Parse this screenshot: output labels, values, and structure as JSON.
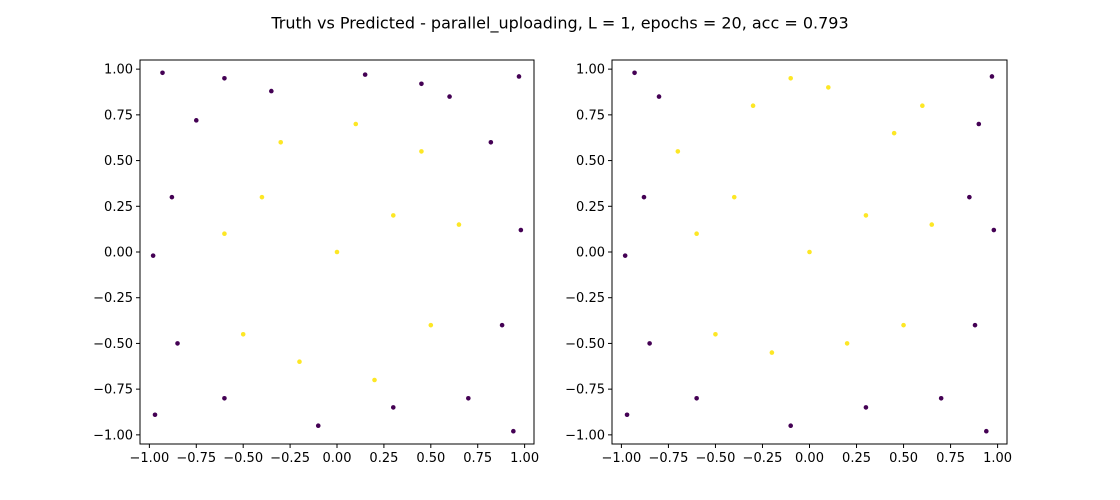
{
  "figure": {
    "suptitle": "Truth vs Predicted - parallel_uploading, L = 1, epochs = 20, acc = 0.793"
  },
  "chart_data": [
    {
      "type": "scatter",
      "panel": "left",
      "title": "",
      "xlabel": "",
      "ylabel": "",
      "xlim": [
        -1.05,
        1.05
      ],
      "ylim": [
        -1.05,
        1.05
      ],
      "xticks": [
        "−1.00",
        "−0.75",
        "−0.50",
        "−0.25",
        "0.00",
        "0.25",
        "0.50",
        "0.75",
        "1.00"
      ],
      "yticks": [
        "−1.00",
        "−0.75",
        "−0.50",
        "−0.25",
        "0.00",
        "0.25",
        "0.50",
        "0.75",
        "1.00"
      ],
      "grid": false,
      "legend": "none",
      "colors": {
        "outside": "#440154",
        "inside": "#fde725"
      },
      "series": [
        {
          "values": [
            [
              -0.93,
              0.98
            ],
            [
              -0.6,
              0.95
            ],
            [
              0.15,
              0.97
            ],
            [
              0.97,
              0.96
            ],
            [
              -0.98,
              -0.02
            ],
            [
              0.98,
              0.12
            ],
            [
              -0.97,
              -0.89
            ],
            [
              0.94,
              -0.98
            ],
            [
              -0.1,
              -0.95
            ],
            [
              0.7,
              -0.8
            ],
            [
              -0.75,
              0.72
            ],
            [
              0.6,
              0.85
            ],
            [
              -0.88,
              0.3
            ],
            [
              0.88,
              -0.4
            ],
            [
              -0.6,
              -0.8
            ],
            [
              0.3,
              -0.85
            ],
            [
              -0.35,
              0.88
            ],
            [
              0.82,
              0.6
            ],
            [
              -0.85,
              -0.5
            ],
            [
              0.45,
              0.92
            ]
          ]
        },
        {
          "values": [
            [
              0.0,
              0.0
            ],
            [
              0.3,
              0.2
            ],
            [
              -0.4,
              0.3
            ],
            [
              0.5,
              -0.4
            ],
            [
              -0.2,
              -0.6
            ],
            [
              0.1,
              0.7
            ],
            [
              -0.6,
              0.1
            ],
            [
              0.65,
              0.15
            ],
            [
              -0.5,
              -0.45
            ],
            [
              0.2,
              -0.7
            ],
            [
              0.45,
              0.55
            ],
            [
              -0.3,
              0.6
            ]
          ]
        }
      ]
    },
    {
      "type": "scatter",
      "panel": "right",
      "title": "",
      "xlabel": "",
      "ylabel": "",
      "xlim": [
        -1.05,
        1.05
      ],
      "ylim": [
        -1.05,
        1.05
      ],
      "xticks": [
        "−1.00",
        "−0.75",
        "−0.50",
        "−0.25",
        "0.00",
        "0.25",
        "0.50",
        "0.75",
        "1.00"
      ],
      "yticks": [
        "−1.00",
        "−0.75",
        "−0.50",
        "−0.25",
        "0.00",
        "0.25",
        "0.50",
        "0.75",
        "1.00"
      ],
      "grid": false,
      "legend": "none",
      "colors": {
        "outside": "#440154",
        "inside": "#fde725"
      },
      "series": [
        {
          "values": [
            [
              -0.93,
              0.98
            ],
            [
              -0.8,
              0.85
            ],
            [
              0.97,
              0.96
            ],
            [
              0.9,
              0.7
            ],
            [
              -0.98,
              -0.02
            ],
            [
              0.98,
              0.12
            ],
            [
              -0.97,
              -0.89
            ],
            [
              0.94,
              -0.98
            ],
            [
              -0.1,
              -0.95
            ],
            [
              0.7,
              -0.8
            ],
            [
              -0.88,
              0.3
            ],
            [
              0.88,
              -0.4
            ],
            [
              -0.6,
              -0.8
            ],
            [
              0.3,
              -0.85
            ],
            [
              -0.85,
              -0.5
            ],
            [
              0.85,
              0.3
            ]
          ]
        },
        {
          "values": [
            [
              0.0,
              0.0
            ],
            [
              0.3,
              0.2
            ],
            [
              -0.4,
              0.3
            ],
            [
              0.5,
              -0.4
            ],
            [
              -0.2,
              -0.55
            ],
            [
              0.1,
              0.9
            ],
            [
              -0.6,
              0.1
            ],
            [
              0.65,
              0.15
            ],
            [
              -0.5,
              -0.45
            ],
            [
              0.2,
              -0.5
            ],
            [
              0.45,
              0.65
            ],
            [
              -0.3,
              0.8
            ],
            [
              -0.1,
              0.95
            ],
            [
              0.6,
              0.8
            ],
            [
              -0.7,
              0.55
            ]
          ]
        }
      ]
    }
  ]
}
